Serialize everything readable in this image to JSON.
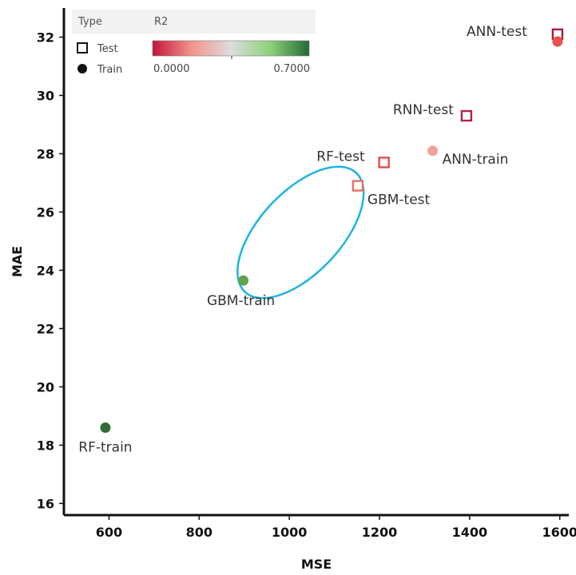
{
  "chart_data": {
    "type": "scatter",
    "title": "",
    "xlabel": "MSE",
    "ylabel": "MAE",
    "xlim": [
      500,
      1620
    ],
    "ylim": [
      15.6,
      33
    ],
    "x_ticks": [
      600,
      800,
      1000,
      1200,
      1400,
      1600
    ],
    "y_ticks": [
      16,
      18,
      20,
      22,
      24,
      26,
      28,
      30,
      32
    ],
    "grid": false,
    "legend": {
      "placement": "top-left",
      "type_header": "Type",
      "color_header": "R2",
      "shape_items": [
        {
          "label": "Test",
          "shape": "open-square"
        },
        {
          "label": "Train",
          "shape": "filled-circle"
        }
      ],
      "color_scale": {
        "min_label": "0.0000",
        "max_label": "0.7000",
        "colors": [
          "#c2163a",
          "#f3948b",
          "#dcdcdc",
          "#8fd17c",
          "#236b35"
        ]
      }
    },
    "points": [
      {
        "label": "ANN-test",
        "type": "Test",
        "x": 1595,
        "y": 32.1,
        "color": "#a8193e"
      },
      {
        "label": "",
        "type": "Train",
        "x": 1595,
        "y": 31.85,
        "color": "#e8514f"
      },
      {
        "label": "RNN-test",
        "type": "Test",
        "x": 1393,
        "y": 29.3,
        "color": "#b42344"
      },
      {
        "label": "ANN-train",
        "type": "Train",
        "x": 1318,
        "y": 28.1,
        "color": "#f3a29a"
      },
      {
        "label": "RF-test",
        "type": "Test",
        "x": 1210,
        "y": 27.7,
        "color": "#e04a4a"
      },
      {
        "label": "GBM-test",
        "type": "Test",
        "x": 1152,
        "y": 26.9,
        "color": "#ea6e62"
      },
      {
        "label": "GBM-train",
        "type": "Train",
        "x": 898,
        "y": 23.65,
        "color": "#62a34e"
      },
      {
        "label": "RF-train",
        "type": "Train",
        "x": 592,
        "y": 18.6,
        "color": "#2f6b34"
      }
    ],
    "annotations": [
      {
        "shape": "ellipse",
        "color": "#1db3e3",
        "center": [
          1025,
          25.3
        ],
        "note": ""
      }
    ]
  }
}
